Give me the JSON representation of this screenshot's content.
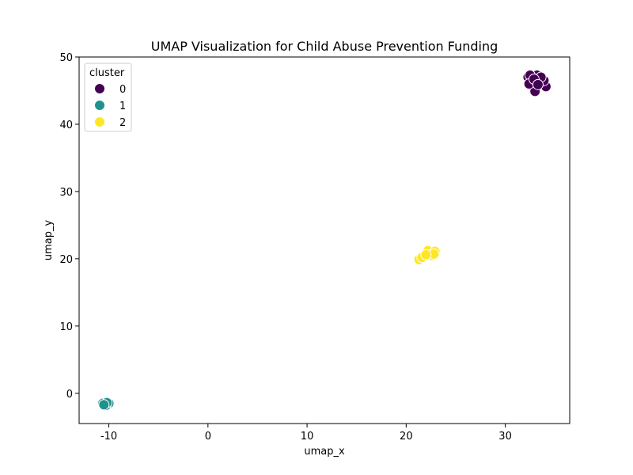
{
  "chart_data": {
    "type": "scatter",
    "title": "UMAP Visualization for Child Abuse Prevention Funding",
    "xlabel": "umap_x",
    "ylabel": "umap_y",
    "xlim": [
      -13,
      36.5
    ],
    "ylim": [
      -4.5,
      50
    ],
    "xticks": [
      -10,
      0,
      10,
      20,
      30
    ],
    "yticks": [
      0,
      10,
      20,
      30,
      40,
      50
    ],
    "grid": false,
    "legend": {
      "title": "cluster",
      "placement": "top-left"
    },
    "series": [
      {
        "name": "0",
        "color": "#440154",
        "points": [
          [
            32.3,
            47.0
          ],
          [
            32.6,
            46.3
          ],
          [
            33.2,
            47.3
          ],
          [
            33.5,
            46.8
          ],
          [
            32.8,
            45.6
          ],
          [
            33.1,
            45.3
          ],
          [
            33.7,
            46.2
          ],
          [
            34.1,
            45.6
          ],
          [
            32.5,
            47.3
          ],
          [
            33.0,
            44.9
          ],
          [
            33.9,
            46.5
          ],
          [
            32.4,
            46.0
          ],
          [
            33.6,
            47.0
          ],
          [
            32.9,
            46.7
          ],
          [
            33.3,
            45.9
          ]
        ]
      },
      {
        "name": "1",
        "color": "#21918c",
        "points": [
          [
            -10.6,
            -1.5
          ],
          [
            -10.0,
            -1.5
          ],
          [
            -10.3,
            -1.8
          ],
          [
            -10.2,
            -1.4
          ],
          [
            -10.5,
            -1.7
          ]
        ]
      },
      {
        "name": "2",
        "color": "#fde725",
        "points": [
          [
            21.3,
            19.9
          ],
          [
            22.2,
            21.2
          ],
          [
            22.9,
            21.1
          ],
          [
            22.6,
            20.5
          ],
          [
            21.6,
            20.2
          ],
          [
            22.8,
            20.7
          ],
          [
            22.0,
            20.6
          ]
        ]
      }
    ]
  }
}
